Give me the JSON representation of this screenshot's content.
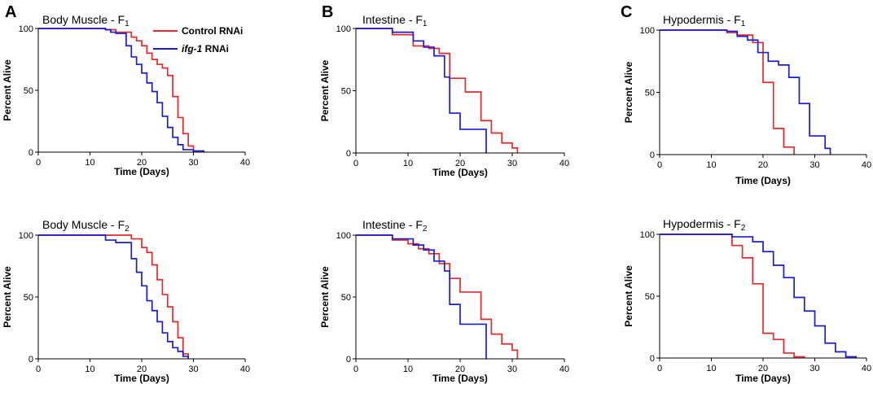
{
  "figure": {
    "panel_labels": [
      "A",
      "B",
      "C"
    ],
    "legend": {
      "entries": [
        {
          "name_italic": "",
          "name_rest": "Control RNAi",
          "color": "#e8282b"
        },
        {
          "name_italic": "ifg-1",
          "name_rest": " RNAi",
          "color": "#1b1bd6"
        }
      ]
    }
  },
  "chart_data": [
    {
      "type": "line",
      "step": true,
      "title_main": "Body Muscle - F",
      "title_sub": "1",
      "xlabel": "Time (Days)",
      "ylabel": "Percent Alive",
      "xlim": [
        0,
        40
      ],
      "ylim": [
        0,
        100
      ],
      "xticks": [
        0,
        10,
        20,
        30,
        40
      ],
      "yticks": [
        0,
        50,
        100
      ],
      "series": [
        {
          "name": "Control RNAi",
          "color": "#e8282b",
          "x": [
            0,
            13,
            15,
            18,
            19,
            20,
            21,
            22,
            23,
            24,
            25,
            26,
            27,
            28,
            29,
            30
          ],
          "y": [
            100,
            99,
            97,
            93,
            90,
            86,
            80,
            75,
            71,
            68,
            62,
            45,
            28,
            15,
            5,
            0
          ]
        },
        {
          "name": "ifg-1 RNAi",
          "color": "#1b1bd6",
          "x": [
            0,
            13,
            14,
            15,
            17,
            18,
            19,
            20,
            21,
            22,
            23,
            24,
            25,
            26,
            27,
            28,
            30,
            32
          ],
          "y": [
            100,
            99,
            97,
            96,
            86,
            77,
            71,
            64,
            56,
            49,
            40,
            29,
            20,
            12,
            6,
            2,
            1,
            0
          ]
        }
      ]
    },
    {
      "type": "line",
      "step": true,
      "title_main": "Intestine - F",
      "title_sub": "1",
      "xlabel": "Time (Days)",
      "ylabel": "Percent Alive",
      "xlim": [
        0,
        40
      ],
      "ylim": [
        0,
        100
      ],
      "xticks": [
        0,
        10,
        20,
        30,
        40
      ],
      "yticks": [
        0,
        50,
        100
      ],
      "series": [
        {
          "name": "Control RNAi",
          "color": "#e8282b",
          "x": [
            0,
            7,
            11,
            14,
            16,
            18,
            21,
            24,
            26,
            28,
            30,
            31
          ],
          "y": [
            100,
            95,
            86,
            84,
            80,
            60,
            49,
            26,
            16,
            8,
            4,
            0
          ]
        },
        {
          "name": "ifg-1 RNAi",
          "color": "#1b1bd6",
          "x": [
            0,
            7,
            11,
            13,
            15,
            17,
            18,
            20,
            25
          ],
          "y": [
            100,
            97,
            90,
            85,
            78,
            61,
            32,
            19,
            0
          ]
        }
      ]
    },
    {
      "type": "line",
      "step": true,
      "title_main": "Hypodermis - F",
      "title_sub": "1",
      "xlabel": "Time (Days)",
      "ylabel": "Percent Alive",
      "xlim": [
        0,
        40
      ],
      "ylim": [
        0,
        100
      ],
      "xticks": [
        0,
        10,
        20,
        30,
        40
      ],
      "yticks": [
        0,
        50,
        100
      ],
      "series": [
        {
          "name": "Control RNAi",
          "color": "#e8282b",
          "x": [
            0,
            13,
            15,
            18,
            20,
            22,
            24,
            26
          ],
          "y": [
            100,
            98,
            96,
            90,
            58,
            21,
            6,
            0
          ]
        },
        {
          "name": "ifg-1 RNAi",
          "color": "#1b1bd6",
          "x": [
            0,
            13,
            15,
            17,
            19,
            21,
            23,
            25,
            27,
            29,
            32,
            33
          ],
          "y": [
            100,
            99,
            95,
            92,
            82,
            75,
            72,
            62,
            41,
            15,
            5,
            0
          ]
        }
      ]
    },
    {
      "type": "line",
      "step": true,
      "title_main": "Body Muscle - F",
      "title_sub": "2",
      "xlabel": "Time (Days)",
      "ylabel": "Percent Alive",
      "xlim": [
        0,
        40
      ],
      "ylim": [
        0,
        100
      ],
      "xticks": [
        0,
        10,
        20,
        30,
        40
      ],
      "yticks": [
        0,
        50,
        100
      ],
      "series": [
        {
          "name": "Control RNAi",
          "color": "#e8282b",
          "x": [
            0,
            18,
            20,
            21,
            22,
            23,
            24,
            25,
            26,
            27,
            28,
            29
          ],
          "y": [
            100,
            97,
            90,
            86,
            76,
            64,
            52,
            42,
            30,
            17,
            4,
            0
          ]
        },
        {
          "name": "ifg-1 RNAi",
          "color": "#1b1bd6",
          "x": [
            0,
            13,
            15,
            18,
            19,
            20,
            21,
            22,
            23,
            24,
            25,
            26,
            27,
            28,
            29
          ],
          "y": [
            100,
            96,
            94,
            81,
            70,
            59,
            47,
            39,
            30,
            21,
            14,
            9,
            6,
            2,
            0
          ]
        }
      ]
    },
    {
      "type": "line",
      "step": true,
      "title_main": "Intestine - F",
      "title_sub": "2",
      "xlabel": "Time (Days)",
      "ylabel": "Percent Alive",
      "xlim": [
        0,
        40
      ],
      "ylim": [
        0,
        100
      ],
      "xticks": [
        0,
        10,
        20,
        30,
        40
      ],
      "yticks": [
        0,
        50,
        100
      ],
      "series": [
        {
          "name": "Control RNAi",
          "color": "#e8282b",
          "x": [
            0,
            7,
            10,
            12,
            14,
            16,
            18,
            20,
            24,
            26,
            28,
            30,
            31
          ],
          "y": [
            100,
            96,
            93,
            89,
            85,
            77,
            65,
            54,
            32,
            20,
            12,
            7,
            0
          ]
        },
        {
          "name": "ifg-1 RNAi",
          "color": "#1b1bd6",
          "x": [
            0,
            7,
            11,
            13,
            15,
            17,
            18,
            20,
            25
          ],
          "y": [
            100,
            97,
            92,
            88,
            79,
            71,
            44,
            28,
            0
          ]
        }
      ]
    },
    {
      "type": "line",
      "step": true,
      "title_main": "Hypodermis - F",
      "title_sub": "2",
      "xlabel": "Time (Days)",
      "ylabel": "Percent Alive",
      "xlim": [
        0,
        40
      ],
      "ylim": [
        0,
        100
      ],
      "xticks": [
        0,
        10,
        20,
        30,
        40
      ],
      "yticks": [
        0,
        50,
        100
      ],
      "series": [
        {
          "name": "Control RNAi",
          "color": "#e8282b",
          "x": [
            0,
            14,
            16,
            18,
            20,
            22,
            24,
            26,
            28
          ],
          "y": [
            100,
            91,
            81,
            60,
            20,
            15,
            4,
            1,
            0
          ]
        },
        {
          "name": "ifg-1 RNAi",
          "color": "#1b1bd6",
          "x": [
            0,
            14,
            18,
            20,
            22,
            24,
            26,
            28,
            30,
            32,
            34,
            36,
            38
          ],
          "y": [
            100,
            98,
            94,
            86,
            75,
            65,
            49,
            38,
            26,
            12,
            5,
            1,
            0
          ]
        }
      ]
    }
  ]
}
